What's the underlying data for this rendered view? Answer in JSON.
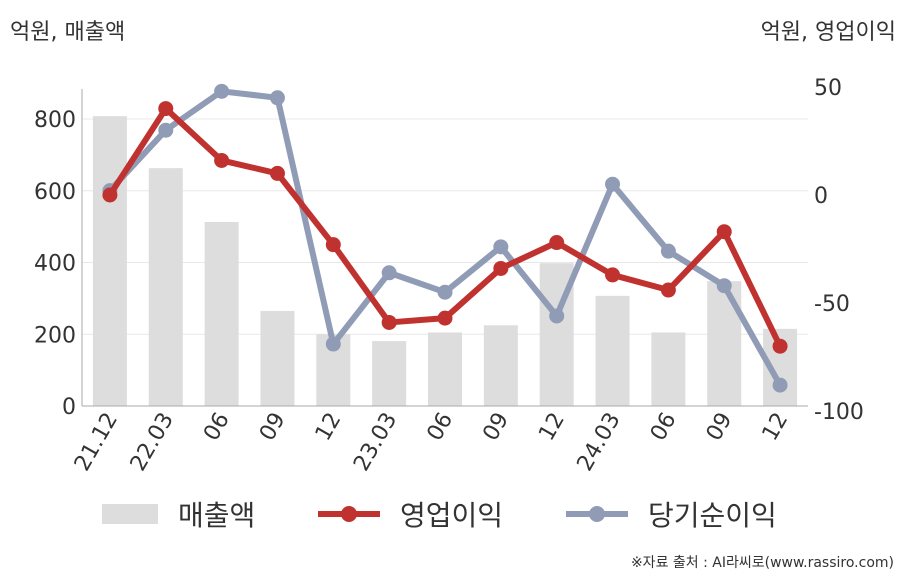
{
  "units": {
    "left": "억원, 매출액",
    "right": "억원, 영업이익"
  },
  "legend": {
    "revenue": "매출액",
    "operating_profit": "영업이익",
    "net_profit": "당기순이익"
  },
  "source": "※자료 출처 : AI라씨로(www.rassiro.com)",
  "colors": {
    "revenue": "#dddddd",
    "operating_profit": "#c0322f",
    "net_profit": "#909cb6",
    "axis": "#aaaaaa",
    "grid": "#e8e8e8",
    "text": "#333333"
  },
  "chart_data": {
    "type": "bar+line",
    "categories": [
      "21.12",
      "22.03",
      "06",
      "09",
      "12",
      "23.03",
      "06",
      "09",
      "12",
      "24.03",
      "06",
      "09",
      "12"
    ],
    "left_axis": {
      "ylim": [
        0,
        900
      ],
      "ticks": [
        0,
        200,
        400,
        600,
        800
      ]
    },
    "right_axis": {
      "ylim": [
        -100,
        50
      ],
      "ticks": [
        -100,
        -50,
        0,
        50
      ]
    },
    "series": [
      {
        "name": "매출액",
        "type": "bar",
        "axis": "left",
        "values": [
          808,
          663,
          513,
          265,
          200,
          181,
          205,
          225,
          398,
          307,
          205,
          348,
          215
        ]
      },
      {
        "name": "영업이익",
        "type": "line",
        "axis": "right",
        "values": [
          0,
          40,
          16,
          10,
          -23,
          -59,
          -57,
          -34,
          -22,
          -37,
          -44,
          -17,
          -70
        ]
      },
      {
        "name": "당기순이익",
        "type": "line",
        "axis": "right",
        "values": [
          2,
          30,
          48,
          45,
          -69,
          -36,
          -45,
          -24,
          -56,
          5,
          -26,
          -42,
          -88
        ]
      }
    ]
  }
}
